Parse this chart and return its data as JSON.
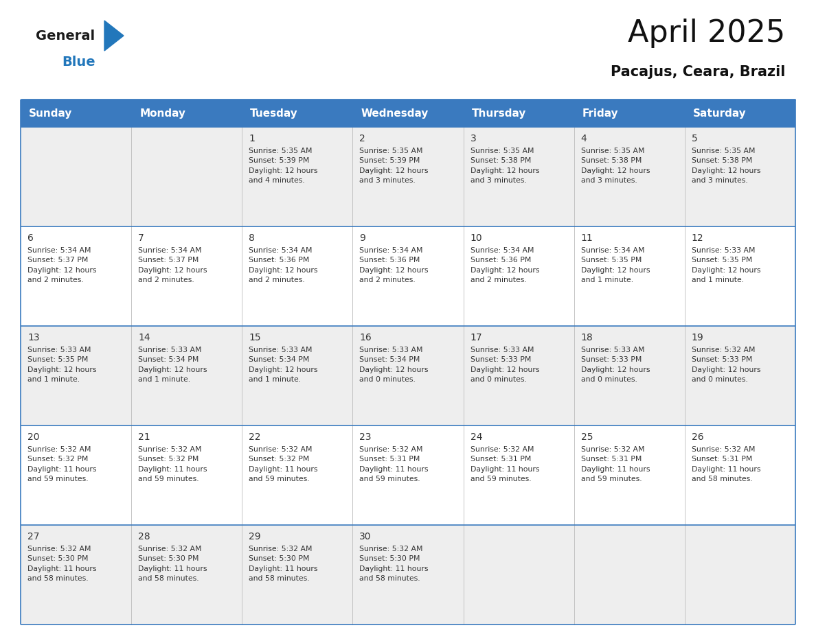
{
  "title": "April 2025",
  "subtitle": "Pacajus, Ceara, Brazil",
  "header_bg_color": "#3a7abf",
  "header_text_color": "#ffffff",
  "day_names": [
    "Sunday",
    "Monday",
    "Tuesday",
    "Wednesday",
    "Thursday",
    "Friday",
    "Saturday"
  ],
  "bg_color": "#ffffff",
  "cell_bg_light": "#eeeeee",
  "cell_bg_white": "#ffffff",
  "border_color": "#3a7abf",
  "text_color": "#333333",
  "logo_black": "#1a1a1a",
  "logo_blue": "#2277bb",
  "triangle_color": "#2277bb",
  "calendar": [
    [
      {
        "day": null,
        "info": ""
      },
      {
        "day": null,
        "info": ""
      },
      {
        "day": 1,
        "info": "Sunrise: 5:35 AM\nSunset: 5:39 PM\nDaylight: 12 hours\nand 4 minutes."
      },
      {
        "day": 2,
        "info": "Sunrise: 5:35 AM\nSunset: 5:39 PM\nDaylight: 12 hours\nand 3 minutes."
      },
      {
        "day": 3,
        "info": "Sunrise: 5:35 AM\nSunset: 5:38 PM\nDaylight: 12 hours\nand 3 minutes."
      },
      {
        "day": 4,
        "info": "Sunrise: 5:35 AM\nSunset: 5:38 PM\nDaylight: 12 hours\nand 3 minutes."
      },
      {
        "day": 5,
        "info": "Sunrise: 5:35 AM\nSunset: 5:38 PM\nDaylight: 12 hours\nand 3 minutes."
      }
    ],
    [
      {
        "day": 6,
        "info": "Sunrise: 5:34 AM\nSunset: 5:37 PM\nDaylight: 12 hours\nand 2 minutes."
      },
      {
        "day": 7,
        "info": "Sunrise: 5:34 AM\nSunset: 5:37 PM\nDaylight: 12 hours\nand 2 minutes."
      },
      {
        "day": 8,
        "info": "Sunrise: 5:34 AM\nSunset: 5:36 PM\nDaylight: 12 hours\nand 2 minutes."
      },
      {
        "day": 9,
        "info": "Sunrise: 5:34 AM\nSunset: 5:36 PM\nDaylight: 12 hours\nand 2 minutes."
      },
      {
        "day": 10,
        "info": "Sunrise: 5:34 AM\nSunset: 5:36 PM\nDaylight: 12 hours\nand 2 minutes."
      },
      {
        "day": 11,
        "info": "Sunrise: 5:34 AM\nSunset: 5:35 PM\nDaylight: 12 hours\nand 1 minute."
      },
      {
        "day": 12,
        "info": "Sunrise: 5:33 AM\nSunset: 5:35 PM\nDaylight: 12 hours\nand 1 minute."
      }
    ],
    [
      {
        "day": 13,
        "info": "Sunrise: 5:33 AM\nSunset: 5:35 PM\nDaylight: 12 hours\nand 1 minute."
      },
      {
        "day": 14,
        "info": "Sunrise: 5:33 AM\nSunset: 5:34 PM\nDaylight: 12 hours\nand 1 minute."
      },
      {
        "day": 15,
        "info": "Sunrise: 5:33 AM\nSunset: 5:34 PM\nDaylight: 12 hours\nand 1 minute."
      },
      {
        "day": 16,
        "info": "Sunrise: 5:33 AM\nSunset: 5:34 PM\nDaylight: 12 hours\nand 0 minutes."
      },
      {
        "day": 17,
        "info": "Sunrise: 5:33 AM\nSunset: 5:33 PM\nDaylight: 12 hours\nand 0 minutes."
      },
      {
        "day": 18,
        "info": "Sunrise: 5:33 AM\nSunset: 5:33 PM\nDaylight: 12 hours\nand 0 minutes."
      },
      {
        "day": 19,
        "info": "Sunrise: 5:32 AM\nSunset: 5:33 PM\nDaylight: 12 hours\nand 0 minutes."
      }
    ],
    [
      {
        "day": 20,
        "info": "Sunrise: 5:32 AM\nSunset: 5:32 PM\nDaylight: 11 hours\nand 59 minutes."
      },
      {
        "day": 21,
        "info": "Sunrise: 5:32 AM\nSunset: 5:32 PM\nDaylight: 11 hours\nand 59 minutes."
      },
      {
        "day": 22,
        "info": "Sunrise: 5:32 AM\nSunset: 5:32 PM\nDaylight: 11 hours\nand 59 minutes."
      },
      {
        "day": 23,
        "info": "Sunrise: 5:32 AM\nSunset: 5:31 PM\nDaylight: 11 hours\nand 59 minutes."
      },
      {
        "day": 24,
        "info": "Sunrise: 5:32 AM\nSunset: 5:31 PM\nDaylight: 11 hours\nand 59 minutes."
      },
      {
        "day": 25,
        "info": "Sunrise: 5:32 AM\nSunset: 5:31 PM\nDaylight: 11 hours\nand 59 minutes."
      },
      {
        "day": 26,
        "info": "Sunrise: 5:32 AM\nSunset: 5:31 PM\nDaylight: 11 hours\nand 58 minutes."
      }
    ],
    [
      {
        "day": 27,
        "info": "Sunrise: 5:32 AM\nSunset: 5:30 PM\nDaylight: 11 hours\nand 58 minutes."
      },
      {
        "day": 28,
        "info": "Sunrise: 5:32 AM\nSunset: 5:30 PM\nDaylight: 11 hours\nand 58 minutes."
      },
      {
        "day": 29,
        "info": "Sunrise: 5:32 AM\nSunset: 5:30 PM\nDaylight: 11 hours\nand 58 minutes."
      },
      {
        "day": 30,
        "info": "Sunrise: 5:32 AM\nSunset: 5:30 PM\nDaylight: 11 hours\nand 58 minutes."
      },
      {
        "day": null,
        "info": ""
      },
      {
        "day": null,
        "info": ""
      },
      {
        "day": null,
        "info": ""
      }
    ]
  ]
}
